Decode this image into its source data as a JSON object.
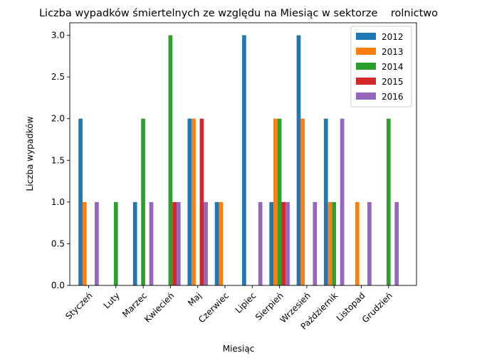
{
  "chart_data": {
    "type": "bar",
    "title": "Liczba wypadków śmiertelnych ze względu na Miesiąc w sektorze    rolnictwo",
    "xlabel": "Miesiąc",
    "ylabel": "Liczba wypadków",
    "ylim": [
      0,
      3.15
    ],
    "yticks": [
      "0.0",
      "0.5",
      "1.0",
      "1.5",
      "2.0",
      "2.5",
      "3.0"
    ],
    "yticks_values": [
      0,
      0.5,
      1.0,
      1.5,
      2.0,
      2.5,
      3.0
    ],
    "grid": false,
    "legend_position": "top-right",
    "categories": [
      "Styczeń",
      "Luty",
      "Marzec",
      "Kwiecień",
      "Maj",
      "Czerwiec",
      "Lipiec",
      "Sierpień",
      "Wrzesień",
      "Październik",
      "Listopad",
      "Grudzień"
    ],
    "series": [
      {
        "name": "2012",
        "color": "#1f77b4",
        "values": [
          2,
          0,
          1,
          0,
          2,
          1,
          3,
          1,
          3,
          2,
          0,
          0
        ]
      },
      {
        "name": "2013",
        "color": "#ff7f0e",
        "values": [
          1,
          0,
          0,
          0,
          2,
          1,
          0,
          2,
          2,
          1,
          1,
          0
        ]
      },
      {
        "name": "2014",
        "color": "#2ca02c",
        "values": [
          0,
          1,
          2,
          3,
          0,
          0,
          0,
          2,
          0,
          1,
          0,
          2
        ]
      },
      {
        "name": "2015",
        "color": "#d62728",
        "values": [
          0,
          0,
          0,
          1,
          2,
          0,
          0,
          1,
          0,
          0,
          0,
          0
        ]
      },
      {
        "name": "2016",
        "color": "#9467bd",
        "values": [
          1,
          0,
          1,
          1,
          1,
          0,
          1,
          1,
          1,
          2,
          1,
          1
        ]
      }
    ]
  }
}
